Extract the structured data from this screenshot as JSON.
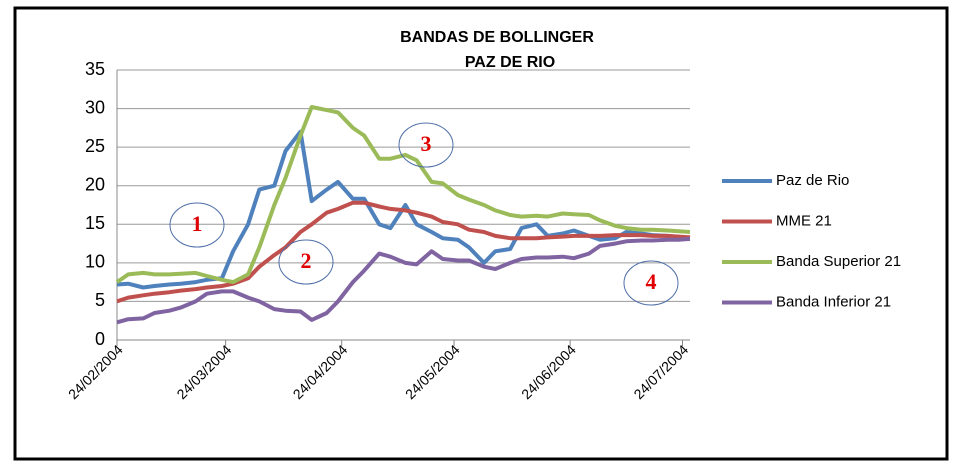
{
  "chart_data": {
    "type": "line",
    "title": "BANDAS DE BOLLINGER",
    "subtitle": "PAZ DE RIO",
    "x": [
      "2004-02-24",
      "2004-02-27",
      "2004-03-02",
      "2004-03-05",
      "2004-03-09",
      "2004-03-12",
      "2004-03-16",
      "2004-03-19",
      "2004-03-23",
      "2004-03-26",
      "2004-03-30",
      "2004-04-02",
      "2004-04-06",
      "2004-04-09",
      "2004-04-13",
      "2004-04-16",
      "2004-04-20",
      "2004-04-23",
      "2004-04-27",
      "2004-04-30",
      "2004-05-04",
      "2004-05-07",
      "2004-05-11",
      "2004-05-14",
      "2004-05-18",
      "2004-05-21",
      "2004-05-25",
      "2004-05-28",
      "2004-06-01",
      "2004-06-04",
      "2004-06-08",
      "2004-06-11",
      "2004-06-15",
      "2004-06-18",
      "2004-06-22",
      "2004-06-25",
      "2004-06-29",
      "2004-07-02",
      "2004-07-06",
      "2004-07-09",
      "2004-07-13",
      "2004-07-16",
      "2004-07-20",
      "2004-07-23",
      "2004-07-26"
    ],
    "series": [
      {
        "name": "Paz de Rio",
        "color": "#4f81bd",
        "values": [
          7.2,
          7.3,
          6.8,
          7.0,
          7.2,
          7.3,
          7.5,
          7.8,
          8.0,
          11.5,
          15,
          19.5,
          20,
          24.5,
          27,
          18,
          19.5,
          20.5,
          18.3,
          18.3,
          15,
          14.5,
          17.5,
          15,
          14,
          13.2,
          13,
          12,
          10,
          11.5,
          11.8,
          14.5,
          15,
          13.5,
          13.8,
          14.2,
          13.5,
          13,
          13.2,
          14,
          13.8,
          13.6,
          13.5,
          13.3,
          13.2
        ]
      },
      {
        "name": "MME  21",
        "color": "#c0504d",
        "values": [
          5,
          5.5,
          5.8,
          6,
          6.2,
          6.4,
          6.6,
          6.8,
          7,
          7.3,
          8,
          9.5,
          11,
          12,
          14,
          15,
          16.5,
          17,
          17.8,
          17.8,
          17.3,
          17,
          16.8,
          16.5,
          16,
          15.3,
          15,
          14.3,
          14,
          13.5,
          13.2,
          13.2,
          13.2,
          13.3,
          13.4,
          13.5,
          13.5,
          13.5,
          13.6,
          13.6,
          13.6,
          13.5,
          13.5,
          13.4,
          13.3
        ]
      },
      {
        "name": "Banda Superior 21",
        "color": "#9bbb59",
        "values": [
          7.5,
          8.5,
          8.7,
          8.5,
          8.5,
          8.6,
          8.7,
          8.3,
          7.8,
          7.5,
          8.5,
          12,
          17.5,
          21,
          26.5,
          30.2,
          29.8,
          29.5,
          27.5,
          26.5,
          23.5,
          23.5,
          24,
          23.3,
          20.5,
          20.3,
          18.8,
          18.2,
          17.5,
          16.8,
          16.2,
          16,
          16.1,
          16,
          16.4,
          16.3,
          16.2,
          15.5,
          14.8,
          14.5,
          14.3,
          14.3,
          14.2,
          14.1,
          14
        ]
      },
      {
        "name": "Banda Inferior 21",
        "color": "#8064a2",
        "values": [
          2.3,
          2.7,
          2.8,
          3.5,
          3.8,
          4.2,
          5,
          6,
          6.3,
          6.3,
          5.5,
          5,
          4,
          3.8,
          3.7,
          2.6,
          3.5,
          5,
          7.5,
          9,
          11.2,
          10.8,
          10,
          9.8,
          11.5,
          10.5,
          10.3,
          10.3,
          9.5,
          9.2,
          10,
          10.5,
          10.7,
          10.7,
          10.8,
          10.6,
          11.2,
          12.2,
          12.5,
          12.8,
          12.9,
          12.9,
          13,
          13,
          13.1
        ]
      }
    ],
    "xlim": [
      "2004-02-24",
      "2004-07-26"
    ],
    "xticks": [
      {
        "value": "2004-02-24",
        "label": "24/02/2004"
      },
      {
        "value": "2004-03-24",
        "label": "24/03/2004"
      },
      {
        "value": "2004-04-24",
        "label": "24/04/2004"
      },
      {
        "value": "2004-05-24",
        "label": "24/05/2004"
      },
      {
        "value": "2004-06-24",
        "label": "24/06/2004"
      },
      {
        "value": "2004-07-24",
        "label": "24/07/2004"
      }
    ],
    "ylim": [
      0,
      35
    ],
    "yticks": [
      0,
      5,
      10,
      15,
      20,
      25,
      30,
      35
    ],
    "grid": true,
    "legend": "right",
    "annotations": [
      "1",
      "2",
      "3",
      "4"
    ]
  }
}
